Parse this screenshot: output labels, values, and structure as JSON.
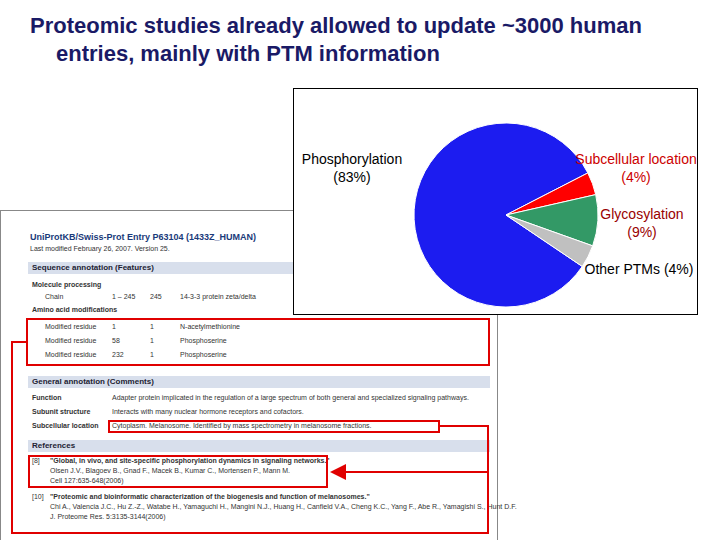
{
  "chart_data": {
    "type": "pie",
    "title": "Proteomic studies already allowed to update ~3000 human entries, mainly with PTM information",
    "categories": [
      "Phosphorylation",
      "Subcellular location",
      "Glycosylation",
      "Other PTMs"
    ],
    "values": [
      83,
      4,
      9,
      4
    ],
    "value_labels": [
      "(83%)",
      "(4%)",
      "(9%)",
      "(4%)"
    ],
    "colors": [
      "#1c1cf0",
      "#ff0000",
      "#339966",
      "#c0c0c0"
    ]
  },
  "screenshot": {
    "header": "UniProtKB/Swiss-Prot Entry P63104 (1433Z_HUMAN)",
    "modified": "Last modified February 26, 2007. Version 25.",
    "features": {
      "title": "Sequence annotation (Features)",
      "groups": [
        {
          "title": "Molecule processing",
          "rows": [
            [
              "Chain",
              "1 – 245",
              "245",
              "14-3-3 protein zeta/delta"
            ]
          ]
        },
        {
          "title": "Amino acid modifications",
          "rows": [
            [
              "Modified residue",
              "1",
              "1",
              "N-acetylmethionine"
            ],
            [
              "Modified residue",
              "58",
              "1",
              "Phosphoserine"
            ],
            [
              "Modified residue",
              "232",
              "1",
              "Phosphoserine"
            ]
          ]
        }
      ]
    },
    "comments": {
      "title": "General annotation (Comments)",
      "rows": [
        [
          "Function",
          "Adapter protein implicated in the regulation of a large spectrum of both general and specialized signaling pathways."
        ],
        [
          "Subunit structure",
          "Interacts with many nuclear hormone receptors and cofactors."
        ],
        [
          "Subcellular location",
          "Cytoplasm. Melanosome. Identified by mass spectrometry in melanosome fractions."
        ]
      ]
    },
    "references": {
      "title": "References",
      "items": [
        {
          "num": "[8]",
          "title": "\"Global, in vivo, and site-specific phosphorylation dynamics in signaling networks.\"",
          "authors": "Olsen J.V., Blagoev B., Gnad F., Macek B., Kumar C., Mortensen P., Mann M.",
          "source": "Cell 127:635-648(2006)"
        },
        {
          "num": "[10]",
          "title": "\"Proteomic and bioinformatic characterization of the biogenesis and function of melanosomes.\"",
          "authors": "Chi A., Valencia J.C., Hu Z.-Z., Watabe H., Yamaguchi H., Mangini N.J., Huang H., Canfield V.A., Cheng K.C., Yang F., Abe R., Yamagishi S., Hunt D.F.",
          "source": "J. Proteome Res. 5:3135-3144(2006)"
        }
      ]
    }
  }
}
